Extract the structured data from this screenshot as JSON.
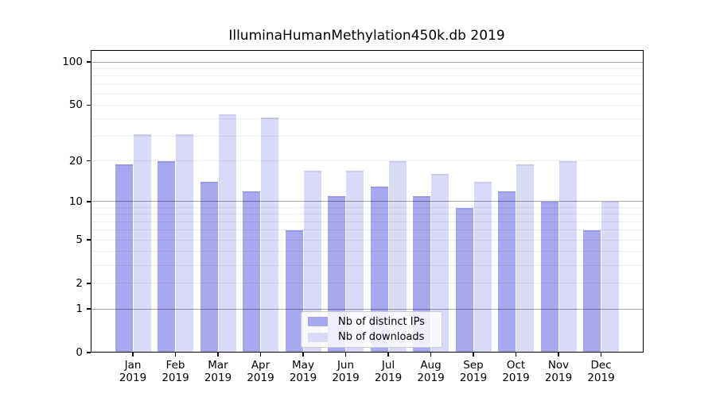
{
  "chart_data": {
    "type": "bar",
    "title": "IlluminaHumanMethylation450k.db 2019",
    "categories": [
      "Jan",
      "Feb",
      "Mar",
      "Apr",
      "May",
      "Jun",
      "Jul",
      "Aug",
      "Sep",
      "Oct",
      "Nov",
      "Dec"
    ],
    "year_label": "2019",
    "series": [
      {
        "name": "Nb of distinct IPs",
        "color": "#a8a8f0",
        "edge_color": "#9898e6",
        "values": [
          19,
          20,
          14,
          12,
          6,
          11,
          13,
          11,
          9,
          12,
          10,
          6
        ]
      },
      {
        "name": "Nb of downloads",
        "color": "#d9d9f8",
        "edge_color": "#ccccf0",
        "values": [
          31,
          31,
          43,
          41,
          17,
          17,
          20,
          16,
          14,
          19,
          20,
          10
        ]
      }
    ],
    "xlabel": "",
    "ylabel": "",
    "yscale": "log1p",
    "ylim": [
      0,
      121
    ],
    "yticks": [
      0,
      1,
      2,
      5,
      10,
      20,
      50,
      100
    ],
    "major_gridlines": [
      1,
      10,
      100
    ],
    "minor_gridlines": [
      2,
      3,
      4,
      5,
      6,
      7,
      8,
      9,
      20,
      30,
      40,
      50,
      60,
      70,
      80,
      90
    ],
    "grid": true,
    "legend_position": "bottom-center"
  },
  "colors": {
    "background": "#ffffff",
    "axis": "#000000",
    "text": "#000000",
    "major_grid": "rgba(0,0,0,0.34)",
    "minor_grid": "rgba(0,0,0,0.07)",
    "legend_border": "#cccccc",
    "legend_bg": "rgba(255,255,255,0.8)"
  }
}
